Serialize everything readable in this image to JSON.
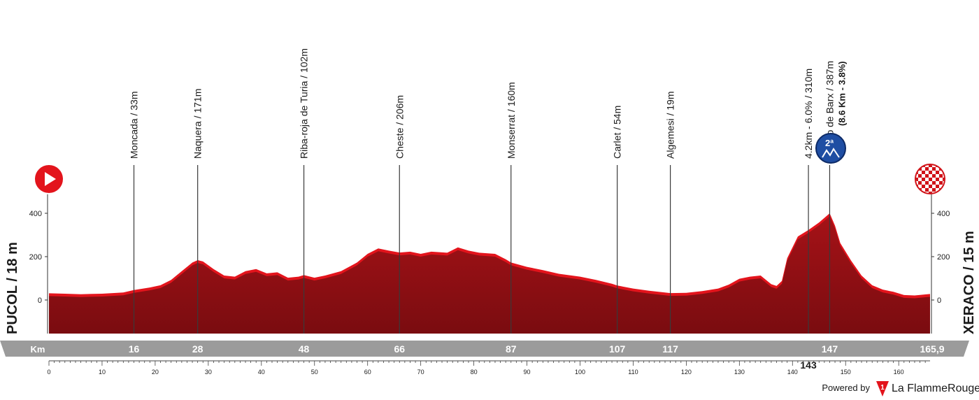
{
  "colors": {
    "profile_dark": "#8b0f12",
    "profile_light": "#e3141c",
    "band": "#9b9b9b",
    "text": "#1a1a1a",
    "climb_badge": "#1f4ea3",
    "start_icon": "#e3141c"
  },
  "icons": {
    "start": "play-icon",
    "finish": "checkered-flag-icon",
    "climb": "mountain-cat2-icon"
  },
  "start_label": "PUCOL / 18 m",
  "finish_label": "XERACO / 15 m",
  "band_unit": "Km",
  "climb_badge_text": "2ª",
  "powered_by": "Powered by",
  "brand": "La FlammeRouge",
  "chart_data": {
    "type": "area",
    "total_km": 165.9,
    "ylim": [
      -150,
      420
    ],
    "y_ticks": [
      0,
      200,
      400
    ],
    "x_ticks": [
      0,
      10,
      20,
      30,
      40,
      50,
      60,
      70,
      80,
      90,
      100,
      110,
      120,
      130,
      140,
      150,
      160
    ],
    "profile": [
      [
        0,
        18
      ],
      [
        3,
        16
      ],
      [
        6,
        14
      ],
      [
        10,
        16
      ],
      [
        14,
        22
      ],
      [
        16,
        33
      ],
      [
        19,
        45
      ],
      [
        21,
        55
      ],
      [
        23,
        80
      ],
      [
        25,
        120
      ],
      [
        27,
        160
      ],
      [
        28,
        171
      ],
      [
        29,
        165
      ],
      [
        31,
        130
      ],
      [
        33,
        100
      ],
      [
        35,
        95
      ],
      [
        37,
        120
      ],
      [
        39,
        130
      ],
      [
        41,
        110
      ],
      [
        43,
        115
      ],
      [
        45,
        90
      ],
      [
        47,
        95
      ],
      [
        48,
        102
      ],
      [
        50,
        90
      ],
      [
        52,
        100
      ],
      [
        55,
        120
      ],
      [
        58,
        160
      ],
      [
        60,
        200
      ],
      [
        62,
        225
      ],
      [
        64,
        215
      ],
      [
        66,
        206
      ],
      [
        68,
        210
      ],
      [
        70,
        200
      ],
      [
        72,
        210
      ],
      [
        75,
        205
      ],
      [
        77,
        230
      ],
      [
        79,
        215
      ],
      [
        81,
        205
      ],
      [
        84,
        200
      ],
      [
        86,
        175
      ],
      [
        87,
        160
      ],
      [
        90,
        140
      ],
      [
        93,
        125
      ],
      [
        96,
        108
      ],
      [
        100,
        95
      ],
      [
        103,
        80
      ],
      [
        106,
        62
      ],
      [
        107,
        54
      ],
      [
        110,
        40
      ],
      [
        113,
        30
      ],
      [
        117,
        19
      ],
      [
        120,
        20
      ],
      [
        123,
        28
      ],
      [
        126,
        40
      ],
      [
        128,
        58
      ],
      [
        130,
        85
      ],
      [
        132,
        95
      ],
      [
        134,
        100
      ],
      [
        136,
        60
      ],
      [
        137,
        52
      ],
      [
        138,
        75
      ],
      [
        139,
        180
      ],
      [
        141,
        280
      ],
      [
        143,
        310
      ],
      [
        145,
        345
      ],
      [
        147,
        387
      ],
      [
        148,
        330
      ],
      [
        149,
        250
      ],
      [
        151,
        170
      ],
      [
        153,
        100
      ],
      [
        155,
        55
      ],
      [
        157,
        35
      ],
      [
        159,
        25
      ],
      [
        161,
        10
      ],
      [
        163,
        8
      ],
      [
        165.9,
        15
      ]
    ],
    "waypoints": [
      {
        "km": 16,
        "label": "Moncada / 33m",
        "km_label": "16"
      },
      {
        "km": 28,
        "label": "Naquera / 171m",
        "km_label": "28"
      },
      {
        "km": 48,
        "label": "Riba-roja de Turia / 102m",
        "km_label": "48"
      },
      {
        "km": 66,
        "label": "Cheste / 206m",
        "km_label": "66"
      },
      {
        "km": 87,
        "label": "Monserrat / 160m",
        "km_label": "87"
      },
      {
        "km": 107,
        "label": "Carlet  / 54m",
        "km_label": "107"
      },
      {
        "km": 117,
        "label": "Algemesi / 19m",
        "km_label": "117"
      },
      {
        "km": 143,
        "label": "4.2km - 6.0% / 310m",
        "km_label": "143"
      },
      {
        "km": 147,
        "label": "Puerto de Barx / 387m",
        "sublabel": "(8.6 Km - 3.8%)",
        "km_label": "147"
      }
    ],
    "finish_km_label": "165,9"
  }
}
